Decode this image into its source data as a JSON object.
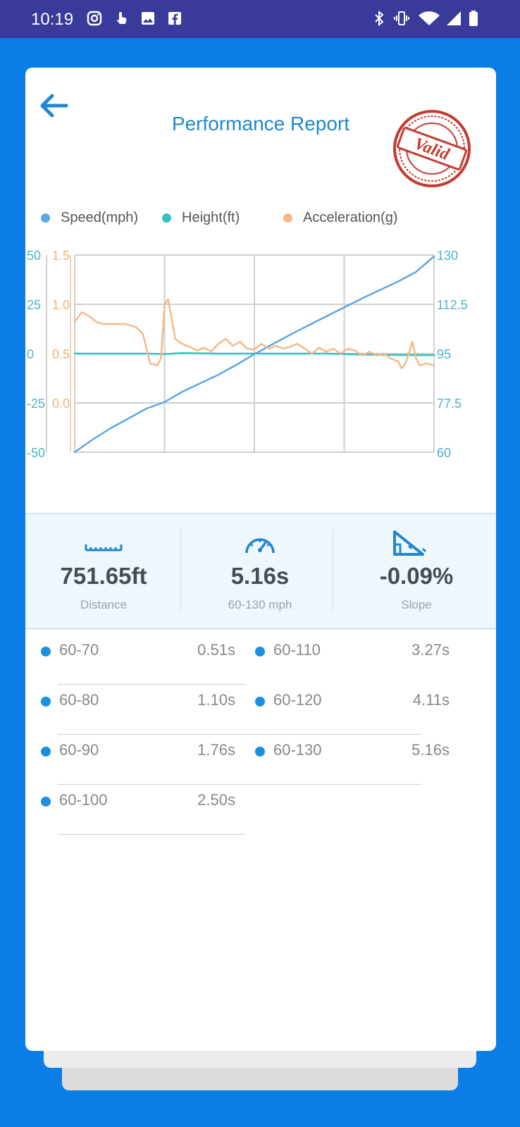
{
  "status_bar": {
    "time": "10:19",
    "icons": [
      "instagram-icon",
      "touch-icon",
      "gallery-icon",
      "facebook-icon",
      "bluetooth-icon",
      "vibrate-icon",
      "wifi-icon",
      "signal-icon",
      "battery-icon"
    ]
  },
  "header": {
    "title": "Performance Report",
    "stamp_text": "Valid",
    "stamp_color": "#c23b2f"
  },
  "colors": {
    "background": "#0a7de6",
    "speed": "#5aa7e8",
    "height": "#2ec4bd",
    "acceleration": "#f7b887",
    "accent": "#1f87d1"
  },
  "chart_data": {
    "type": "line",
    "legend": [
      "Speed(mph)",
      "Height(ft)",
      "Acceleration(g)"
    ],
    "legend_position": "top",
    "grid": true,
    "axes": {
      "height_left": {
        "ticks": [
          "50",
          "25",
          "0",
          "-25",
          "-50"
        ],
        "range": [
          -50,
          50
        ]
      },
      "acceleration_left": {
        "ticks": [
          "1.5",
          "1.0",
          "0.5",
          "0.0"
        ],
        "range": [
          -0.5,
          1.5
        ]
      },
      "speed_right": {
        "ticks": [
          "130",
          "112.5",
          "95",
          "77.5",
          "60"
        ],
        "range": [
          60,
          130
        ]
      }
    },
    "series": [
      {
        "name": "Speed(mph)",
        "axis": "speed_right",
        "x": [
          0,
          0.05,
          0.1,
          0.15,
          0.2,
          0.25,
          0.3,
          0.35,
          0.4,
          0.45,
          0.5,
          0.55,
          0.6,
          0.65,
          0.7,
          0.75,
          0.8,
          0.85,
          0.9,
          0.95,
          1.0
        ],
        "y": [
          60,
          64.5,
          68.5,
          72.0,
          75.5,
          77.8,
          81.5,
          84.5,
          87.5,
          91.0,
          94.8,
          98.3,
          101.7,
          105.0,
          108.2,
          111.4,
          114.6,
          117.6,
          120.6,
          124.0,
          129.5
        ]
      },
      {
        "name": "Height(ft)",
        "axis": "height_left",
        "x": [
          0,
          0.1,
          0.2,
          0.25,
          0.3,
          0.4,
          0.5,
          0.6,
          0.7,
          0.8,
          0.9,
          1.0
        ],
        "y": [
          0,
          0,
          0,
          -0.2,
          0.3,
          0,
          0,
          0,
          0,
          -0.5,
          -0.7,
          -0.8
        ]
      },
      {
        "name": "Acceleration(g)",
        "axis": "acceleration_left",
        "x": [
          0,
          0.02,
          0.04,
          0.06,
          0.08,
          0.11,
          0.14,
          0.17,
          0.19,
          0.2,
          0.21,
          0.23,
          0.24,
          0.245,
          0.25,
          0.26,
          0.27,
          0.28,
          0.29,
          0.3,
          0.31,
          0.32,
          0.34,
          0.36,
          0.38,
          0.4,
          0.42,
          0.44,
          0.46,
          0.48,
          0.5,
          0.52,
          0.54,
          0.56,
          0.58,
          0.6,
          0.62,
          0.64,
          0.66,
          0.68,
          0.7,
          0.72,
          0.74,
          0.76,
          0.78,
          0.8,
          0.82,
          0.84,
          0.86,
          0.88,
          0.9,
          0.91,
          0.92,
          0.93,
          0.94,
          0.95,
          0.96,
          0.98,
          1.0
        ],
        "y": [
          0.82,
          0.92,
          0.88,
          0.82,
          0.8,
          0.8,
          0.8,
          0.77,
          0.7,
          0.55,
          0.4,
          0.38,
          0.45,
          0.7,
          1.0,
          1.05,
          0.85,
          0.65,
          0.62,
          0.6,
          0.58,
          0.57,
          0.53,
          0.56,
          0.52,
          0.6,
          0.65,
          0.58,
          0.62,
          0.55,
          0.54,
          0.6,
          0.55,
          0.58,
          0.55,
          0.57,
          0.6,
          0.55,
          0.5,
          0.56,
          0.52,
          0.55,
          0.5,
          0.55,
          0.53,
          0.48,
          0.52,
          0.48,
          0.5,
          0.45,
          0.42,
          0.35,
          0.4,
          0.5,
          0.62,
          0.45,
          0.38,
          0.4,
          0.38
        ]
      }
    ]
  },
  "stats": [
    {
      "icon": "ruler-icon",
      "value": "751.65ft",
      "label": "Distance"
    },
    {
      "icon": "speedometer-icon",
      "value": "5.16s",
      "label": "60-130 mph"
    },
    {
      "icon": "slope-icon",
      "value": "-0.09%",
      "label": "Slope"
    }
  ],
  "splits": [
    {
      "range": "60-70",
      "time": "0.51s"
    },
    {
      "range": "60-110",
      "time": "3.27s"
    },
    {
      "range": "60-80",
      "time": "1.10s"
    },
    {
      "range": "60-120",
      "time": "4.11s"
    },
    {
      "range": "60-90",
      "time": "1.76s"
    },
    {
      "range": "60-130",
      "time": "5.16s"
    },
    {
      "range": "60-100",
      "time": "2.50s"
    }
  ]
}
